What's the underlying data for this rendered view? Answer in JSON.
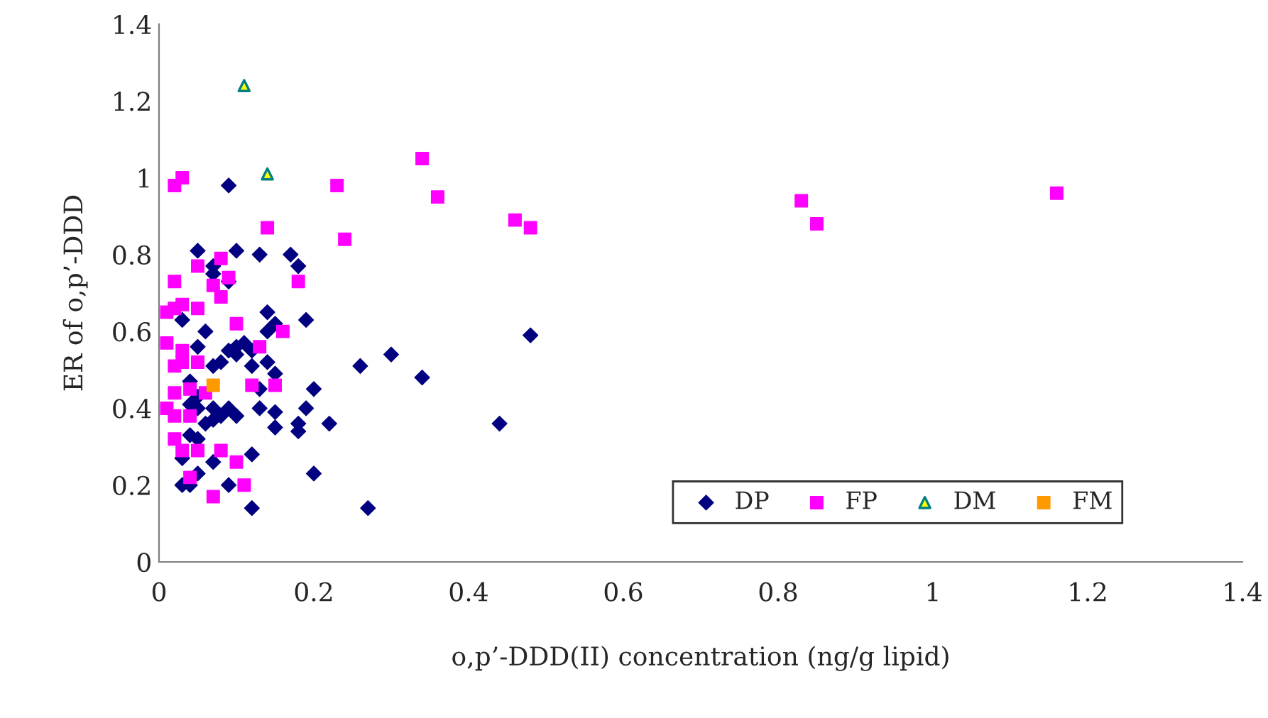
{
  "chart_data": {
    "type": "scatter",
    "xlabel": "o,p’-DDD(II) concentration (ng/g lipid)",
    "ylabel": "ER of o,p’-DDD",
    "xlim": [
      0,
      1.4
    ],
    "xticks": [
      0,
      0.2,
      0.4,
      0.6,
      0.8,
      1,
      1.2,
      1.4
    ],
    "ylim": [
      0,
      1.4
    ],
    "yticks": [
      0,
      0.2,
      0.4,
      0.6,
      0.8,
      1,
      1.2,
      1.4
    ],
    "grid": false,
    "legend": "bottom right",
    "series": [
      {
        "name": "DP",
        "color": "#000080",
        "marker": "diamond",
        "x": [
          0.05,
          0.07,
          0.07,
          0.09,
          0.1,
          0.13,
          0.17,
          0.18,
          0.09,
          0.14,
          0.19,
          0.15,
          0.14,
          0.06,
          0.03,
          0.11,
          0.12,
          0.09,
          0.1,
          0.05,
          0.08,
          0.07,
          0.12,
          0.14,
          0.15,
          0.2,
          0.04,
          0.05,
          0.04,
          0.05,
          0.07,
          0.09,
          0.1,
          0.08,
          0.07,
          0.06,
          0.13,
          0.15,
          0.19,
          0.18,
          0.18,
          0.22,
          0.15,
          0.04,
          0.05,
          0.03,
          0.12,
          0.03,
          0.04,
          0.09,
          0.12,
          0.2,
          0.27,
          0.26,
          0.3,
          0.34,
          0.44,
          0.48,
          0.07,
          0.05,
          0.1,
          0.13
        ],
        "values": [
          0.81,
          0.77,
          0.75,
          0.98,
          0.81,
          0.8,
          0.8,
          0.77,
          0.73,
          0.65,
          0.63,
          0.62,
          0.6,
          0.6,
          0.63,
          0.57,
          0.55,
          0.55,
          0.54,
          0.56,
          0.52,
          0.51,
          0.51,
          0.52,
          0.49,
          0.45,
          0.47,
          0.43,
          0.41,
          0.4,
          0.4,
          0.4,
          0.38,
          0.38,
          0.37,
          0.36,
          0.4,
          0.39,
          0.4,
          0.36,
          0.34,
          0.36,
          0.35,
          0.33,
          0.32,
          0.27,
          0.28,
          0.2,
          0.2,
          0.2,
          0.14,
          0.23,
          0.14,
          0.51,
          0.54,
          0.48,
          0.36,
          0.59,
          0.26,
          0.23,
          0.56,
          0.45
        ]
      },
      {
        "name": "FP",
        "color": "#ff00ff",
        "marker": "square",
        "x": [
          0.02,
          0.03,
          0.02,
          0.01,
          0.02,
          0.03,
          0.05,
          0.05,
          0.07,
          0.08,
          0.08,
          0.09,
          0.14,
          0.18,
          0.1,
          0.16,
          0.13,
          0.01,
          0.03,
          0.03,
          0.02,
          0.05,
          0.02,
          0.04,
          0.06,
          0.01,
          0.02,
          0.04,
          0.12,
          0.15,
          0.02,
          0.03,
          0.05,
          0.08,
          0.1,
          0.04,
          0.11,
          0.07,
          0.23,
          0.24,
          0.34,
          0.36,
          0.46,
          0.48,
          0.83,
          0.85,
          1.16
        ],
        "values": [
          0.98,
          1.0,
          0.73,
          0.65,
          0.66,
          0.67,
          0.66,
          0.77,
          0.72,
          0.69,
          0.79,
          0.74,
          0.87,
          0.73,
          0.62,
          0.6,
          0.56,
          0.57,
          0.55,
          0.52,
          0.51,
          0.52,
          0.44,
          0.45,
          0.44,
          0.4,
          0.38,
          0.38,
          0.46,
          0.46,
          0.32,
          0.29,
          0.29,
          0.29,
          0.26,
          0.22,
          0.2,
          0.17,
          0.98,
          0.84,
          1.05,
          0.95,
          0.89,
          0.87,
          0.94,
          0.88,
          0.96
        ]
      },
      {
        "name": "DM",
        "color": "#008080",
        "marker": "triangle",
        "x": [
          0.11,
          0.14
        ],
        "values": [
          1.24,
          1.01
        ]
      },
      {
        "name": "FM",
        "color": "#ff9900",
        "marker": "square",
        "x": [
          0.07
        ],
        "values": [
          0.46
        ]
      }
    ]
  }
}
